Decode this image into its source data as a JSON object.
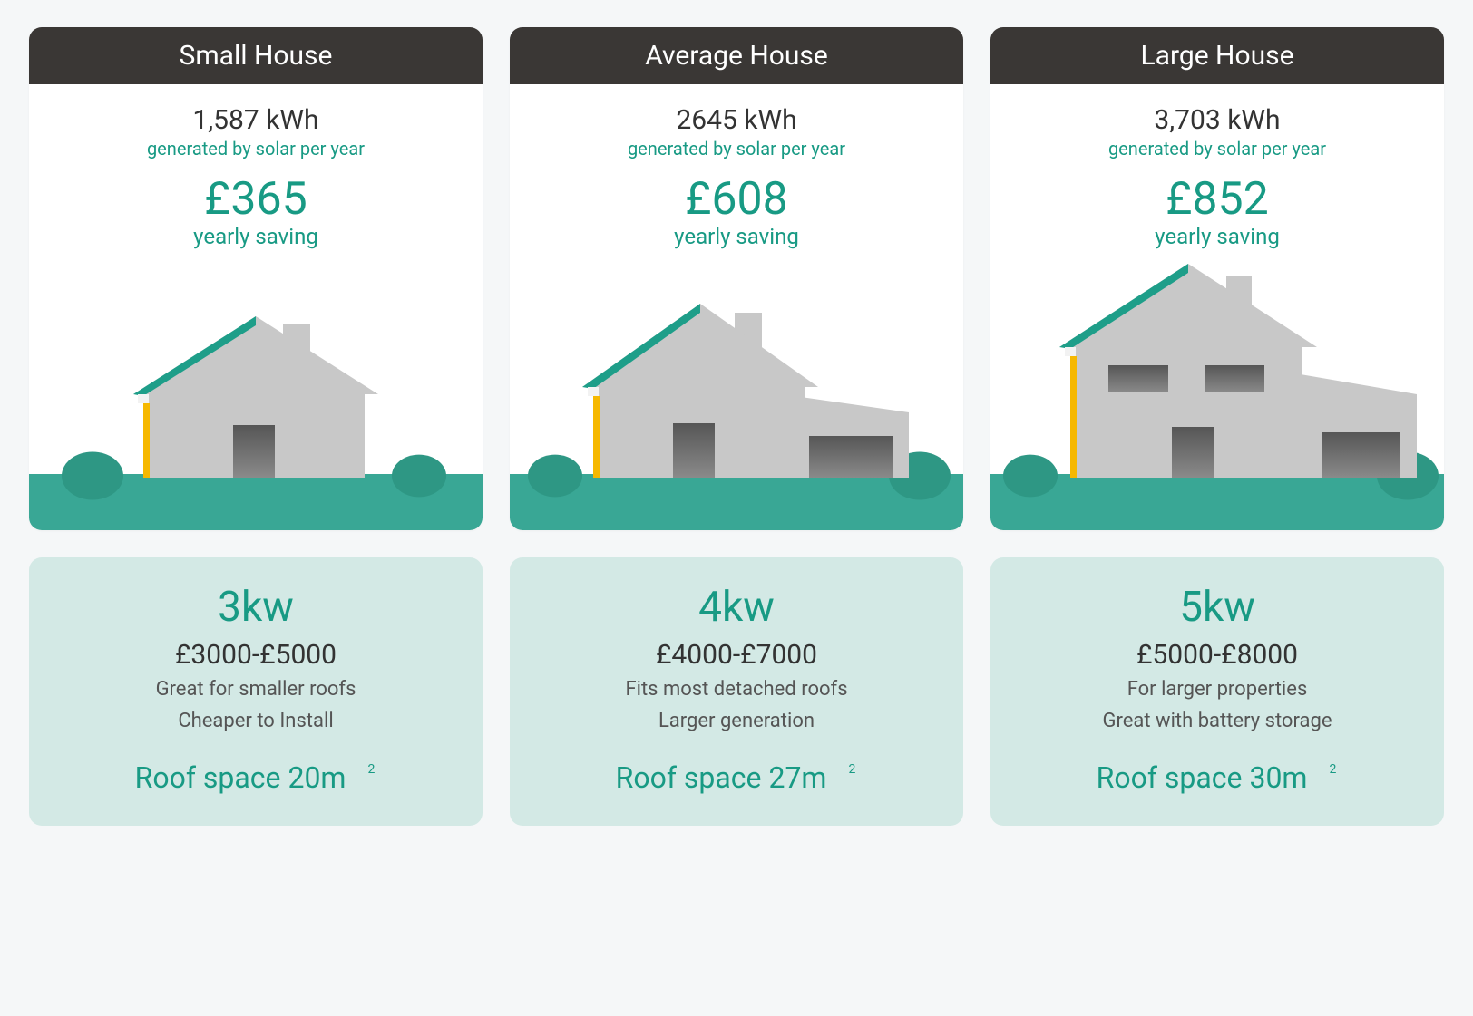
{
  "colors": {
    "page_bg": "#f5f7f8",
    "card_bg": "#ffffff",
    "header_bg": "#3a3735",
    "header_text": "#ffffff",
    "text_dark": "#333333",
    "teal": "#189a84",
    "light_teal_panel": "#d3e9e5",
    "grass": "#39a795",
    "house_fill": "#c8c8c8",
    "window_dark": "#6f6f6f",
    "roof_edge": "#1e9e89",
    "gutter": "#f2f2f2",
    "pipe": "#f6b800",
    "bush": "#2e9784"
  },
  "typography": {
    "header_fs": 30,
    "kwh_fs": 30,
    "gen_sub_fs": 20,
    "saving_amt_fs": 50,
    "saving_sub_fs": 24,
    "kw_fs": 46,
    "price_fs": 30,
    "bullet_fs": 22,
    "roof_fs": 32
  },
  "labels": {
    "gen_sub": "generated by solar per year",
    "saving_sub": "yearly saving",
    "roof_prefix": "Roof space ",
    "roof_unit": "m",
    "roof_sup": "2"
  },
  "cards": [
    {
      "title": "Small House",
      "kwh": "1,587 kWh",
      "saving": "£365",
      "kw": "3kw",
      "price": "£3000-£5000",
      "bullets": [
        "Great for smaller roofs",
        "Cheaper to Install"
      ],
      "roof_space": "20",
      "house_variant": "small"
    },
    {
      "title": "Average House",
      "kwh": "2645 kWh",
      "saving": "£608",
      "kw": "4kw",
      "price": "£4000-£7000",
      "bullets": [
        "Fits most detached roofs",
        "Larger generation"
      ],
      "roof_space": "27",
      "house_variant": "medium"
    },
    {
      "title": "Large House",
      "kwh": "3,703 kWh",
      "saving": "£852",
      "kw": "5kw",
      "price": "£5000-£8000",
      "bullets": [
        "For larger properties",
        "Great with battery storage"
      ],
      "roof_space": "30",
      "house_variant": "large"
    }
  ]
}
